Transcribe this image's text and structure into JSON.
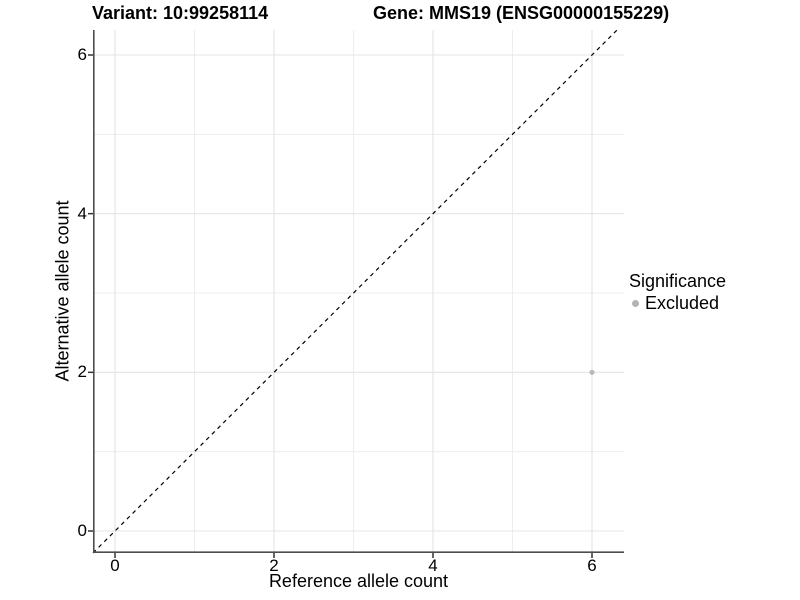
{
  "title": {
    "variant": "Variant: 10:99258114",
    "gene": "Gene: MMS19 (ENSG00000155229)"
  },
  "legend": {
    "title": "Significance",
    "items": [
      {
        "label": "Excluded",
        "color": "#b3b3b3"
      }
    ]
  },
  "colors": {
    "background": "#ffffff",
    "text": "#000000",
    "axis_line": "#4d4d4d",
    "tick_mark": "#333333",
    "grid_major": "#e4e4e4",
    "grid_minor": "#ededed",
    "point": "#b8b8b8",
    "reference_line": "#000000"
  },
  "chart_data": {
    "type": "scatter",
    "title": "Variant: 10:99258114   Gene: MMS19 (ENSG00000155229)",
    "xlabel": "Reference allele count",
    "ylabel": "Alternative allele count",
    "xlim": [
      -0.277,
      6.395
    ],
    "ylim": [
      -0.277,
      6.316
    ],
    "x_ticks": [
      0,
      2,
      4,
      6
    ],
    "y_ticks": [
      0,
      2,
      4,
      6
    ],
    "x_tick_labels": [
      "0",
      "2",
      "4",
      "6"
    ],
    "y_tick_labels": [
      "0",
      "2",
      "4",
      "6"
    ],
    "x_minor_ticks": [
      1,
      3,
      5
    ],
    "y_minor_ticks": [
      1,
      3,
      5
    ],
    "grid": true,
    "legend_position": "right",
    "series": [
      {
        "name": "Excluded",
        "color": "#b8b8b8",
        "points": [
          {
            "x": 6,
            "y": 2
          }
        ]
      }
    ],
    "reference_line": {
      "kind": "identity",
      "style": "dashed",
      "color": "#000000"
    }
  }
}
